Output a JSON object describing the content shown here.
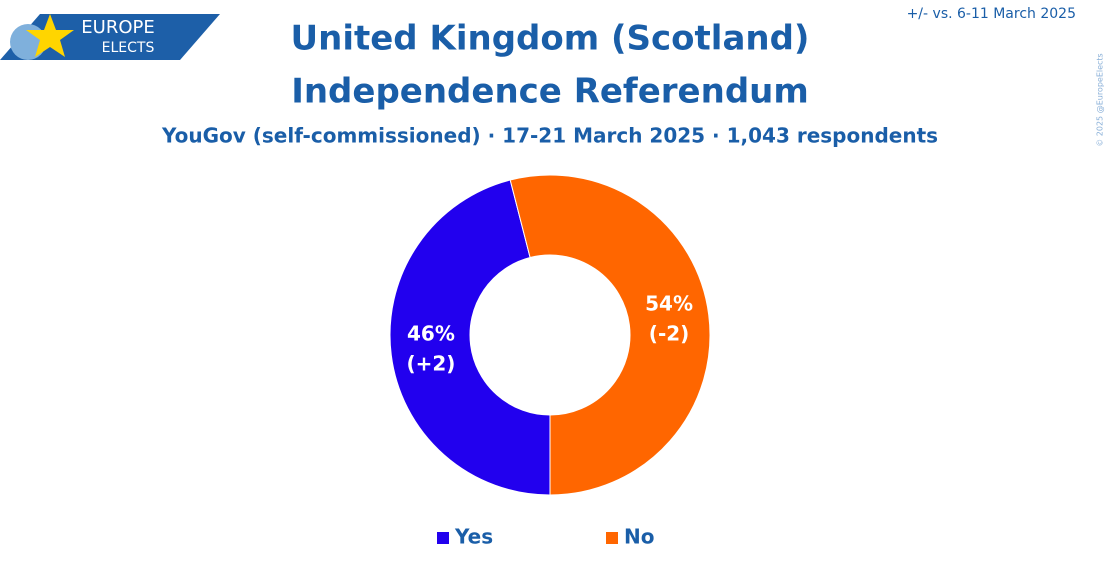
{
  "logo": [
    "EUROPE",
    "ELECTS"
  ],
  "copyright": "© 2025 @EuropeElects",
  "chart_data": {
    "type": "pie",
    "title": [
      "United Kingdom (Scotland)",
      "Independence Referendum"
    ],
    "subtitle": "YouGov (self-commissioned) · 17-21 March 2025 · 1,043 respondents",
    "note": "+/- vs. 6-11 March 2025",
    "categories": [
      "Yes",
      "No"
    ],
    "values": [
      46,
      54
    ],
    "value_labels": [
      "46%",
      "54%"
    ],
    "changes": [
      2,
      -2
    ],
    "change_labels": [
      "(+2)",
      "(-2)"
    ],
    "colors": [
      "#2200ee",
      "#ff6600"
    ],
    "donut": true,
    "legend": "bottom"
  }
}
